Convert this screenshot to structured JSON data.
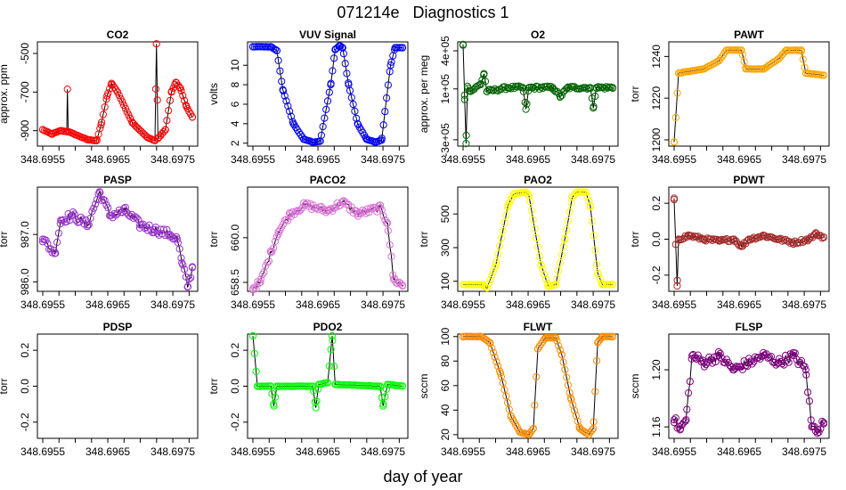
{
  "figure": {
    "title": "071214e   Diagnostics 1",
    "xlabel": "day of year"
  },
  "x_tick_labels": [
    "348.6955",
    "348.6965",
    "348.6975"
  ],
  "chart_data": [
    {
      "type": "line",
      "title": "CO2",
      "ylabel": "approx. ppm",
      "color": "#ff0000",
      "xlim": [
        348.6955,
        348.6978
      ],
      "ylim": [
        -980,
        -440
      ],
      "yticks": [
        -900,
        -700,
        -500
      ],
      "ytick_labels": [
        "-900",
        "-700",
        "-500"
      ],
      "series": [
        {
          "name": "CO2",
          "shape": "co2",
          "keypoints": [
            [
              0,
              -895
            ],
            [
              0.06,
              -918
            ],
            [
              0.12,
              -900
            ],
            [
              0.16,
              -905
            ],
            [
              0.165,
              -685
            ],
            [
              0.17,
              -905
            ],
            [
              0.3,
              -947
            ],
            [
              0.36,
              -952
            ],
            [
              0.39,
              -870
            ],
            [
              0.43,
              -720
            ],
            [
              0.46,
              -655
            ],
            [
              0.5,
              -700
            ],
            [
              0.6,
              -860
            ],
            [
              0.7,
              -935
            ],
            [
              0.75,
              -952
            ],
            [
              0.76,
              -450
            ],
            [
              0.77,
              -940
            ],
            [
              0.82,
              -895
            ],
            [
              0.86,
              -700
            ],
            [
              0.89,
              -650
            ],
            [
              0.92,
              -680
            ],
            [
              0.96,
              -775
            ],
            [
              1.0,
              -830
            ]
          ]
        }
      ]
    },
    {
      "type": "line",
      "title": "VUV Signal",
      "ylabel": "volts",
      "color": "#0000ff",
      "xlim": [
        348.6955,
        348.6978
      ],
      "ylim": [
        1.7,
        12.4
      ],
      "yticks": [
        2,
        4,
        6,
        8,
        10
      ],
      "ytick_labels": [
        "2",
        "4",
        "6",
        "8",
        "10"
      ],
      "series": [
        {
          "name": "VUV Signal",
          "shape": "vuv",
          "keypoints": [
            [
              0,
              11.9
            ],
            [
              0.12,
              11.9
            ],
            [
              0.16,
              11.5
            ],
            [
              0.2,
              7.5
            ],
            [
              0.27,
              4
            ],
            [
              0.34,
              2.4
            ],
            [
              0.4,
              2.1
            ],
            [
              0.45,
              2.2
            ],
            [
              0.52,
              8
            ],
            [
              0.55,
              11.6
            ],
            [
              0.58,
              12
            ],
            [
              0.6,
              11.8
            ],
            [
              0.64,
              8
            ],
            [
              0.7,
              4
            ],
            [
              0.76,
              2.4
            ],
            [
              0.82,
              2.1
            ],
            [
              0.86,
              2.3
            ],
            [
              0.92,
              10
            ],
            [
              0.95,
              11.8
            ],
            [
              1.0,
              11.8
            ]
          ]
        }
      ]
    },
    {
      "type": "line",
      "title": "O2",
      "ylabel": "approx. per meg",
      "color": "#006400",
      "xlim": [
        348.6955,
        348.6978
      ],
      "ylim": [
        -350000,
        470000
      ],
      "yticks": [
        -300000,
        100000,
        400000
      ],
      "ytick_labels": [
        "-3e+05",
        "1e+05",
        "4e+05"
      ],
      "series": [
        {
          "name": "O2",
          "shape": "o2",
          "keypoints": [
            [
              0,
              450000
            ],
            [
              0.01,
              50000
            ],
            [
              0.02,
              -330000
            ],
            [
              0.03,
              120000
            ],
            [
              0.05,
              80000
            ],
            [
              0.12,
              140000
            ],
            [
              0.14,
              220000
            ],
            [
              0.16,
              80000
            ],
            [
              0.3,
              110000
            ],
            [
              0.4,
              110000
            ],
            [
              0.42,
              -60000
            ],
            [
              0.44,
              110000
            ],
            [
              0.6,
              110000
            ],
            [
              0.65,
              40000
            ],
            [
              0.7,
              110000
            ],
            [
              0.85,
              110000
            ],
            [
              0.87,
              -50000
            ],
            [
              0.89,
              110000
            ],
            [
              1.0,
              110000
            ]
          ]
        }
      ]
    },
    {
      "type": "line",
      "title": "PAWT",
      "ylabel": "torr",
      "color": "#ffa500",
      "xlim": [
        348.6955,
        348.6978
      ],
      "ylim": [
        1197,
        1247
      ],
      "yticks": [
        1200,
        1220,
        1240
      ],
      "ytick_labels": [
        "1200",
        "1220",
        "1240"
      ],
      "series": [
        {
          "name": "PAWT",
          "shape": "pawt",
          "keypoints": [
            [
              0,
              1199
            ],
            [
              0.03,
              1232
            ],
            [
              0.2,
              1234
            ],
            [
              0.3,
              1238
            ],
            [
              0.35,
              1243
            ],
            [
              0.45,
              1243
            ],
            [
              0.48,
              1234
            ],
            [
              0.6,
              1234
            ],
            [
              0.7,
              1239
            ],
            [
              0.75,
              1243
            ],
            [
              0.85,
              1243
            ],
            [
              0.88,
              1232
            ],
            [
              1.0,
              1231
            ]
          ]
        }
      ]
    },
    {
      "type": "line",
      "title": "PASP",
      "ylabel": "torr",
      "color": "#9932cc",
      "xlim": [
        348.6955,
        348.6978
      ],
      "ylim": [
        985.8,
        988.0
      ],
      "yticks": [
        986.0,
        987.0
      ],
      "ytick_labels": [
        "986.0",
        "987.0"
      ],
      "series": [
        {
          "name": "PASP",
          "shape": "pasp",
          "keypoints": [
            [
              0,
              986.9
            ],
            [
              0.08,
              986.6
            ],
            [
              0.12,
              987.3
            ],
            [
              0.2,
              987.4
            ],
            [
              0.3,
              987.2
            ],
            [
              0.38,
              987.9
            ],
            [
              0.45,
              987.4
            ],
            [
              0.55,
              987.5
            ],
            [
              0.65,
              987.2
            ],
            [
              0.75,
              987.1
            ],
            [
              0.85,
              987.0
            ],
            [
              0.9,
              986.9
            ],
            [
              0.93,
              986.4
            ],
            [
              0.97,
              985.9
            ],
            [
              1.0,
              986.3
            ]
          ]
        }
      ]
    },
    {
      "type": "line",
      "title": "PACO2",
      "ylabel": "torr",
      "color": "#da70d6",
      "xlim": [
        348.6955,
        348.6978
      ],
      "ylim": [
        658.2,
        661.7
      ],
      "yticks": [
        658.5,
        660.0
      ],
      "ytick_labels": [
        "658.5",
        "660.0"
      ],
      "series": [
        {
          "name": "PACO2",
          "shape": "paco2",
          "keypoints": [
            [
              0,
              658.3
            ],
            [
              0.05,
              658.5
            ],
            [
              0.12,
              659.5
            ],
            [
              0.17,
              660.2
            ],
            [
              0.25,
              660.8
            ],
            [
              0.35,
              661.1
            ],
            [
              0.5,
              660.9
            ],
            [
              0.6,
              661.2
            ],
            [
              0.7,
              660.8
            ],
            [
              0.85,
              661.0
            ],
            [
              0.9,
              660.5
            ],
            [
              0.94,
              658.6
            ],
            [
              1.0,
              658.4
            ]
          ]
        }
      ]
    },
    {
      "type": "line",
      "title": "PAO2",
      "ylabel": "torr",
      "color": "#ffff00",
      "xlim": [
        348.6955,
        348.6978
      ],
      "ylim": [
        40,
        660
      ],
      "yticks": [
        100,
        300,
        500
      ],
      "ytick_labels": [
        "100",
        "300",
        "500"
      ],
      "series": [
        {
          "name": "PAO2",
          "shape": "pao2",
          "keypoints": [
            [
              0,
              80
            ],
            [
              0.13,
              80
            ],
            [
              0.16,
              60
            ],
            [
              0.22,
              200
            ],
            [
              0.3,
              550
            ],
            [
              0.34,
              620
            ],
            [
              0.42,
              630
            ],
            [
              0.44,
              610
            ],
            [
              0.52,
              200
            ],
            [
              0.57,
              70
            ],
            [
              0.62,
              80
            ],
            [
              0.68,
              350
            ],
            [
              0.73,
              600
            ],
            [
              0.76,
              630
            ],
            [
              0.82,
              630
            ],
            [
              0.85,
              550
            ],
            [
              0.9,
              150
            ],
            [
              0.93,
              80
            ],
            [
              1.0,
              80
            ]
          ]
        }
      ]
    },
    {
      "type": "line",
      "title": "PDWT",
      "ylabel": "torr",
      "color": "#a52a2a",
      "xlim": [
        348.6955,
        348.6978
      ],
      "ylim": [
        -0.29,
        0.29
      ],
      "yticks": [
        -0.2,
        0.0,
        0.2
      ],
      "ytick_labels": [
        "-0.2",
        "0.0",
        "0.2"
      ],
      "series": [
        {
          "name": "PDWT",
          "shape": "pdwt",
          "keypoints": [
            [
              0,
              0.22
            ],
            [
              0.02,
              -0.26
            ],
            [
              0.03,
              0.0
            ],
            [
              0.1,
              0.02
            ],
            [
              0.2,
              0.0
            ],
            [
              0.3,
              -0.01
            ],
            [
              0.4,
              0.0
            ],
            [
              0.45,
              -0.04
            ],
            [
              0.5,
              0.0
            ],
            [
              0.6,
              0.02
            ],
            [
              0.7,
              0.0
            ],
            [
              0.8,
              -0.02
            ],
            [
              0.9,
              0.0
            ],
            [
              0.95,
              0.03
            ],
            [
              1.0,
              0.01
            ]
          ]
        }
      ]
    },
    {
      "type": "line",
      "title": "PDSP",
      "ylabel": "torr",
      "color": "#000000",
      "xlim": [
        348.6955,
        348.6978
      ],
      "ylim": [
        -0.29,
        0.29
      ],
      "yticks": [
        -0.2,
        0.0,
        0.2
      ],
      "ytick_labels": [
        "-0.2",
        "0.0",
        "0.2"
      ],
      "series": []
    },
    {
      "type": "line",
      "title": "PDO2",
      "ylabel": "torr",
      "color": "#00ff00",
      "xlim": [
        348.6955,
        348.6978
      ],
      "ylim": [
        -0.29,
        0.29
      ],
      "yticks": [
        -0.2,
        0.0,
        0.2
      ],
      "ytick_labels": [
        "-0.2",
        "0.0",
        "0.2"
      ],
      "series": [
        {
          "name": "PDO2",
          "shape": "pdo2",
          "keypoints": [
            [
              0,
              0.28
            ],
            [
              0.03,
              0.0
            ],
            [
              0.12,
              0.0
            ],
            [
              0.14,
              -0.11
            ],
            [
              0.16,
              0.0
            ],
            [
              0.4,
              0.0
            ],
            [
              0.42,
              -0.12
            ],
            [
              0.44,
              0.01
            ],
            [
              0.5,
              0.02
            ],
            [
              0.53,
              0.28
            ],
            [
              0.55,
              0.01
            ],
            [
              0.85,
              0.0
            ],
            [
              0.87,
              -0.11
            ],
            [
              0.9,
              0.01
            ],
            [
              1.0,
              0.0
            ]
          ]
        }
      ]
    },
    {
      "type": "line",
      "title": "FLWT",
      "ylabel": "sccm",
      "color": "#ff8c00",
      "xlim": [
        348.6955,
        348.6978
      ],
      "ylim": [
        17,
        102
      ],
      "yticks": [
        20,
        40,
        60,
        80,
        100
      ],
      "ytick_labels": [
        "20",
        "40",
        "60",
        "80",
        "100"
      ],
      "series": [
        {
          "name": "FLWT",
          "shape": "flwt",
          "keypoints": [
            [
              0,
              100
            ],
            [
              0.12,
              100
            ],
            [
              0.18,
              95
            ],
            [
              0.25,
              70
            ],
            [
              0.32,
              35
            ],
            [
              0.38,
              22
            ],
            [
              0.44,
              20
            ],
            [
              0.47,
              25
            ],
            [
              0.5,
              90
            ],
            [
              0.55,
              99
            ],
            [
              0.62,
              99
            ],
            [
              0.66,
              85
            ],
            [
              0.72,
              50
            ],
            [
              0.78,
              25
            ],
            [
              0.84,
              20
            ],
            [
              0.87,
              25
            ],
            [
              0.9,
              95
            ],
            [
              0.93,
              100
            ],
            [
              1.0,
              100
            ]
          ]
        }
      ]
    },
    {
      "type": "line",
      "title": "FLSP",
      "ylabel": "sccm",
      "color": "#800080",
      "xlim": [
        348.6955,
        348.6978
      ],
      "ylim": [
        1.152,
        1.225
      ],
      "yticks": [
        1.16,
        1.2
      ],
      "ytick_labels": [
        "1.16",
        "1.20"
      ],
      "series": [
        {
          "name": "FLSP",
          "shape": "flsp",
          "keypoints": [
            [
              0,
              1.165
            ],
            [
              0.04,
              1.158
            ],
            [
              0.08,
              1.165
            ],
            [
              0.12,
              1.21
            ],
            [
              0.2,
              1.205
            ],
            [
              0.3,
              1.21
            ],
            [
              0.4,
              1.2
            ],
            [
              0.5,
              1.205
            ],
            [
              0.6,
              1.21
            ],
            [
              0.7,
              1.205
            ],
            [
              0.8,
              1.21
            ],
            [
              0.88,
              1.2
            ],
            [
              0.92,
              1.16
            ],
            [
              0.96,
              1.158
            ],
            [
              1.0,
              1.163
            ]
          ]
        }
      ]
    }
  ]
}
